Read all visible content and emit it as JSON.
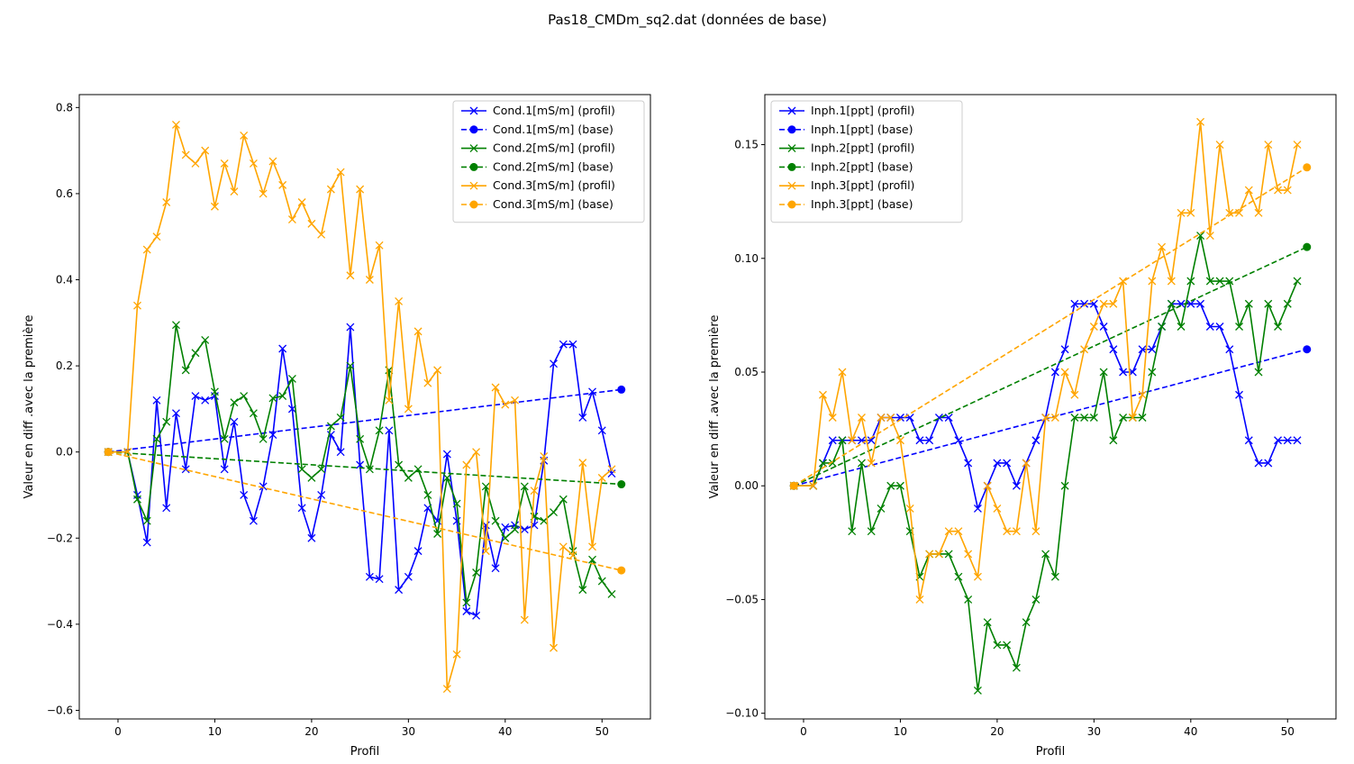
{
  "figure": {
    "suptitle": "Pas18_CMDm_sq2.dat (données de base)"
  },
  "chart_data": [
    {
      "type": "line",
      "xlabel": "Profil",
      "ylabel": "Valeur en diff .avec la première",
      "xlim": [
        -4,
        55
      ],
      "ylim": [
        -0.62,
        0.83
      ],
      "xticks": [
        0,
        10,
        20,
        30,
        40,
        50
      ],
      "yticks": [
        -0.6,
        -0.4,
        -0.2,
        0.0,
        0.2,
        0.4,
        0.6,
        0.8
      ],
      "ytick_labels": [
        "−0.6",
        "−0.4",
        "−0.2",
        "0.0",
        "0.2",
        "0.4",
        "0.6",
        "0.8"
      ],
      "legend_position": "top-right",
      "profile_x": [
        -1,
        1,
        2,
        3,
        4,
        5,
        6,
        7,
        8,
        9,
        10,
        11,
        12,
        13,
        14,
        15,
        16,
        17,
        18,
        19,
        20,
        21,
        22,
        23,
        24,
        25,
        26,
        27,
        28,
        29,
        30,
        31,
        32,
        33,
        34,
        35,
        36,
        37,
        38,
        39,
        40,
        41,
        42,
        43,
        44,
        45,
        46,
        47,
        48,
        49,
        50,
        51
      ],
      "base_x": [
        -1,
        52
      ],
      "series": [
        {
          "name": "Cond.1[mS/m] (profil)",
          "color": "#0000ff",
          "style": "profil",
          "values": [
            0,
            0,
            -0.1,
            -0.21,
            0.12,
            -0.13,
            0.09,
            -0.04,
            0.13,
            0.12,
            0.13,
            -0.04,
            0.07,
            -0.1,
            -0.16,
            -0.08,
            0.04,
            0.24,
            0.1,
            -0.13,
            -0.2,
            -0.1,
            0.04,
            0.0,
            0.29,
            -0.03,
            -0.29,
            -0.295,
            0.05,
            -0.32,
            -0.29,
            -0.23,
            -0.13,
            -0.16,
            -0.005,
            -0.16,
            -0.37,
            -0.38,
            -0.17,
            -0.27,
            -0.175,
            -0.17,
            -0.18,
            -0.17,
            -0.02,
            0.205,
            0.25,
            0.25,
            0.08,
            0.14,
            0.05,
            -0.05
          ]
        },
        {
          "name": "Cond.1[mS/m] (base)",
          "color": "#0000ff",
          "style": "base",
          "values": [
            0,
            0.145
          ]
        },
        {
          "name": "Cond.2[mS/m] (profil)",
          "color": "#008000",
          "style": "profil",
          "values": [
            0,
            0,
            -0.11,
            -0.16,
            0.03,
            0.07,
            0.295,
            0.19,
            0.23,
            0.26,
            0.14,
            0.03,
            0.115,
            0.13,
            0.09,
            0.03,
            0.125,
            0.13,
            0.17,
            -0.04,
            -0.06,
            -0.04,
            0.06,
            0.08,
            0.2,
            0.03,
            -0.04,
            0.05,
            0.19,
            -0.03,
            -0.06,
            -0.04,
            -0.1,
            -0.19,
            -0.06,
            -0.12,
            -0.35,
            -0.28,
            -0.08,
            -0.16,
            -0.2,
            -0.18,
            -0.08,
            -0.15,
            -0.16,
            -0.14,
            -0.11,
            -0.23,
            -0.32,
            -0.25,
            -0.3,
            -0.33
          ]
        },
        {
          "name": "Cond.2[mS/m] (base)",
          "color": "#008000",
          "style": "base",
          "values": [
            0,
            -0.075
          ]
        },
        {
          "name": "Cond.3[mS/m] (profil)",
          "color": "#ffa500",
          "style": "profil",
          "values": [
            0,
            0,
            0.34,
            0.47,
            0.5,
            0.58,
            0.76,
            0.69,
            0.67,
            0.7,
            0.57,
            0.67,
            0.605,
            0.735,
            0.67,
            0.6,
            0.675,
            0.62,
            0.54,
            0.58,
            0.53,
            0.505,
            0.61,
            0.65,
            0.41,
            0.61,
            0.4,
            0.48,
            0.12,
            0.35,
            0.1,
            0.28,
            0.16,
            0.19,
            -0.55,
            -0.47,
            -0.03,
            0.0,
            -0.23,
            0.15,
            0.11,
            0.12,
            -0.39,
            -0.09,
            -0.01,
            -0.455,
            -0.22,
            -0.24,
            -0.025,
            -0.22,
            -0.06,
            -0.04
          ]
        },
        {
          "name": "Cond.3[mS/m] (base)",
          "color": "#ffa500",
          "style": "base",
          "values": [
            0,
            -0.275
          ]
        }
      ]
    },
    {
      "type": "line",
      "xlabel": "Profil",
      "ylabel": "Valeur en diff .avec la première",
      "xlim": [
        -4,
        55
      ],
      "ylim": [
        -0.1025,
        0.172
      ],
      "xticks": [
        0,
        10,
        20,
        30,
        40,
        50
      ],
      "yticks": [
        -0.1,
        -0.05,
        0.0,
        0.05,
        0.1,
        0.15
      ],
      "ytick_labels": [
        "−0.10",
        "−0.05",
        "0.00",
        "0.05",
        "0.10",
        "0.15"
      ],
      "legend_position": "top-left",
      "profile_x": [
        -1,
        1,
        2,
        3,
        4,
        5,
        6,
        7,
        8,
        9,
        10,
        11,
        12,
        13,
        14,
        15,
        16,
        17,
        18,
        19,
        20,
        21,
        22,
        23,
        24,
        25,
        26,
        27,
        28,
        29,
        30,
        31,
        32,
        33,
        34,
        35,
        36,
        37,
        38,
        39,
        40,
        41,
        42,
        43,
        44,
        45,
        46,
        47,
        48,
        49,
        50,
        51
      ],
      "base_x": [
        -1,
        52
      ],
      "series": [
        {
          "name": "Inph.1[ppt] (profil)",
          "color": "#0000ff",
          "style": "profil",
          "values": [
            0,
            0,
            0.01,
            0.02,
            0.02,
            0.02,
            0.02,
            0.02,
            0.03,
            0.03,
            0.03,
            0.03,
            0.02,
            0.02,
            0.03,
            0.03,
            0.02,
            0.01,
            -0.01,
            0.0,
            0.01,
            0.01,
            0.0,
            0.01,
            0.02,
            0.03,
            0.05,
            0.06,
            0.08,
            0.08,
            0.08,
            0.07,
            0.06,
            0.05,
            0.05,
            0.06,
            0.06,
            0.07,
            0.08,
            0.08,
            0.08,
            0.08,
            0.07,
            0.07,
            0.06,
            0.04,
            0.02,
            0.01,
            0.01,
            0.02,
            0.02,
            0.02
          ]
        },
        {
          "name": "Inph.1[ppt] (base)",
          "color": "#0000ff",
          "style": "base",
          "values": [
            0,
            0.06
          ]
        },
        {
          "name": "Inph.2[ppt] (profil)",
          "color": "#008000",
          "style": "profil",
          "values": [
            0,
            0,
            0.01,
            0.01,
            0.02,
            -0.02,
            0.01,
            -0.02,
            -0.01,
            0.0,
            0.0,
            -0.02,
            -0.04,
            -0.03,
            -0.03,
            -0.03,
            -0.04,
            -0.05,
            -0.09,
            -0.06,
            -0.07,
            -0.07,
            -0.08,
            -0.06,
            -0.05,
            -0.03,
            -0.04,
            0.0,
            0.03,
            0.03,
            0.03,
            0.05,
            0.02,
            0.03,
            0.03,
            0.03,
            0.05,
            0.07,
            0.08,
            0.07,
            0.09,
            0.11,
            0.09,
            0.09,
            0.09,
            0.07,
            0.08,
            0.05,
            0.08,
            0.07,
            0.08,
            0.09
          ]
        },
        {
          "name": "Inph.2[ppt] (base)",
          "color": "#008000",
          "style": "base",
          "values": [
            0,
            0.105
          ]
        },
        {
          "name": "Inph.3[ppt] (profil)",
          "color": "#ffa500",
          "style": "profil",
          "values": [
            0,
            0,
            0.04,
            0.03,
            0.05,
            0.02,
            0.03,
            0.01,
            0.03,
            0.03,
            0.02,
            -0.01,
            -0.05,
            -0.03,
            -0.03,
            -0.02,
            -0.02,
            -0.03,
            -0.04,
            0.0,
            -0.01,
            -0.02,
            -0.02,
            0.01,
            -0.02,
            0.03,
            0.03,
            0.05,
            0.04,
            0.06,
            0.07,
            0.08,
            0.08,
            0.09,
            0.03,
            0.04,
            0.09,
            0.105,
            0.09,
            0.12,
            0.12,
            0.16,
            0.11,
            0.15,
            0.12,
            0.12,
            0.13,
            0.12,
            0.15,
            0.13,
            0.13,
            0.15
          ]
        },
        {
          "name": "Inph.3[ppt] (base)",
          "color": "#ffa500",
          "style": "base",
          "values": [
            0,
            0.14
          ]
        }
      ]
    }
  ]
}
